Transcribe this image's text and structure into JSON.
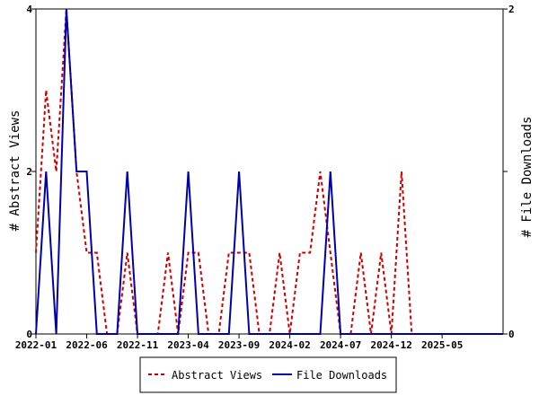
{
  "chart_data": {
    "type": "line",
    "x_ticks": [
      "2022-01",
      "2022-06",
      "2022-11",
      "2023-04",
      "2023-09",
      "2024-02",
      "2024-07",
      "2024-12",
      "2025-05"
    ],
    "ylabel_left": "# Abstract Views",
    "ylabel_right": "# File Downloads",
    "y_left_ticks": [
      "0",
      "2",
      "4"
    ],
    "y_right_ticks": [
      "0",
      "1",
      "2"
    ],
    "ylim_left": [
      0,
      4
    ],
    "ylim_right": [
      0,
      2
    ],
    "x_months": [
      0,
      1,
      2,
      3,
      4,
      5,
      6,
      7,
      8,
      9,
      10,
      11,
      12,
      13,
      14,
      15,
      16,
      17,
      18,
      19,
      20,
      21,
      22,
      23,
      24,
      25,
      26,
      27,
      28,
      29,
      30,
      31,
      32,
      33,
      34,
      35,
      36,
      37,
      38,
      39,
      40,
      41,
      42,
      43,
      44,
      45,
      46
    ],
    "series": [
      {
        "name": "Abstract Views",
        "axis": "left",
        "color": "#cc0000",
        "dash": true,
        "values": [
          1,
          3,
          2,
          4,
          2,
          1,
          1,
          0,
          0,
          1,
          0,
          0,
          0,
          1,
          0,
          1,
          1,
          0,
          0,
          1,
          1,
          1,
          0,
          0,
          1,
          0,
          1,
          1,
          2,
          1,
          0,
          0,
          1,
          0,
          1,
          0,
          2,
          0,
          0,
          0,
          0,
          0,
          0,
          0,
          0,
          0,
          0
        ]
      },
      {
        "name": "File Downloads",
        "axis": "right",
        "color": "#0000aa",
        "dash": false,
        "values": [
          0,
          1,
          0,
          2,
          1,
          1,
          0,
          0,
          0,
          1,
          0,
          0,
          0,
          0,
          0,
          1,
          0,
          0,
          0,
          0,
          1,
          0,
          0,
          0,
          0,
          0,
          0,
          0,
          0,
          1,
          0,
          0,
          0,
          0,
          0,
          0,
          0,
          0,
          0,
          0,
          0,
          0,
          0,
          0,
          0,
          0,
          0
        ]
      }
    ],
    "legend_position": "bottom-center",
    "grid": false
  },
  "colors": {
    "views_color": "#cc0000",
    "downloads_color": "#0000aa"
  }
}
